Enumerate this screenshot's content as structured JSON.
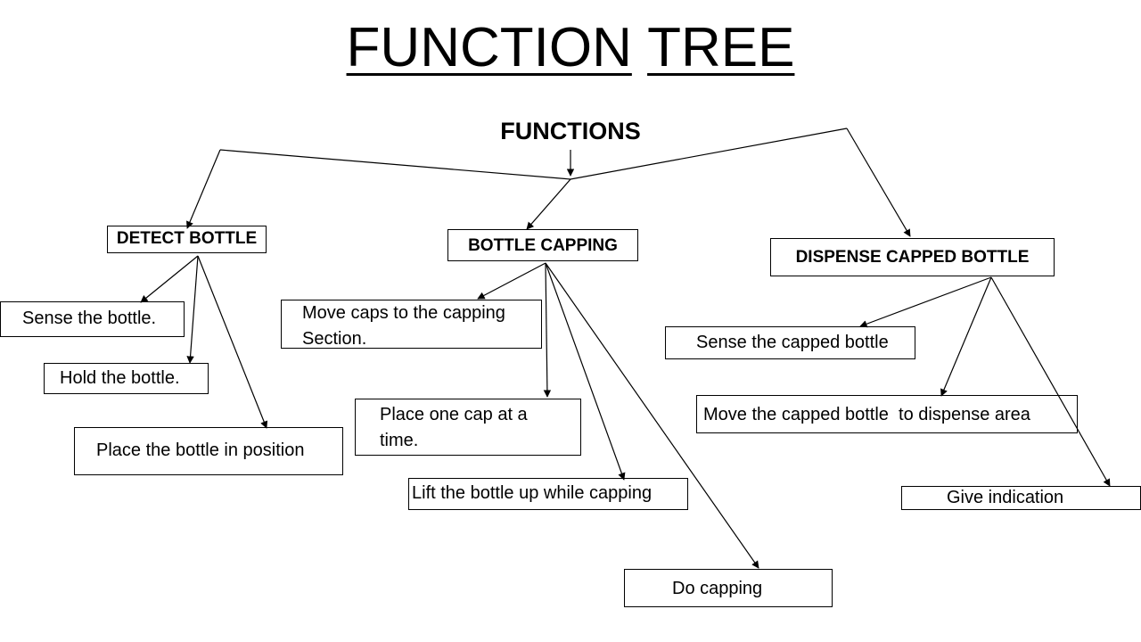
{
  "title": {
    "word1": "FUNCTION",
    "word2": "TREE"
  },
  "root": {
    "label": "FUNCTIONS"
  },
  "branches": {
    "detect": {
      "label": "DETECT BOTTLE",
      "items": [
        "Sense the bottle.",
        "Hold the bottle.",
        "Place the bottle in position"
      ]
    },
    "capping": {
      "label": "BOTTLE CAPPING",
      "items": [
        "Move caps to the capping Section.",
        "Place one cap at a time.",
        "Lift the bottle up while capping",
        "Do capping"
      ]
    },
    "dispense": {
      "label": "DISPENSE CAPPED BOTTLE",
      "items": [
        "Sense the capped bottle",
        "Move the capped bottle  to dispense area",
        "Give indication"
      ]
    }
  }
}
